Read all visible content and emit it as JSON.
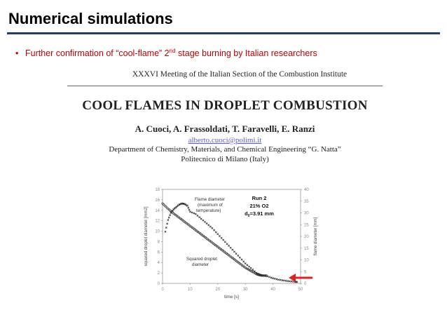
{
  "slide": {
    "title": "Numerical simulations",
    "bullet": "Further confirmation of “cool-flame” 2nd stage burning by Italian researchers",
    "bullet_prefix": "Further confirmation of “cool-flame” 2",
    "bullet_sup": "nd",
    "bullet_suffix": " stage burning by Italian researchers"
  },
  "paper": {
    "meeting": "XXXVI Meeting of the Italian Section of the Combustion Institute",
    "title": "COOL FLAMES IN DROPLET COMBUSTION",
    "authors": "A. Cuoci, A. Frassoldati, T. Faravelli, E. Ranzi",
    "email": "alberto.cuoci@polimi.it",
    "department": "Department of Chemistry, Materials, and Chemical Engineering “G. Natta”",
    "university": "Politecnico di Milano (Italy)"
  },
  "chart_data": {
    "type": "scatter",
    "xlabel": "time [s]",
    "ylabel_left": "squared droplet diameter [mm2]",
    "ylabel_right": "flame diameter [mm]",
    "xlim": [
      0,
      50
    ],
    "ylim_left": [
      0,
      18
    ],
    "ylim_right": [
      0,
      40
    ],
    "xticks": [
      "0",
      "10",
      "20",
      "30",
      "40",
      "50"
    ],
    "yticks_left": [
      "0",
      "2",
      "4",
      "6",
      "8",
      "10",
      "12",
      "14",
      "16",
      "18"
    ],
    "yticks_right": [
      "0",
      "5",
      "10",
      "15",
      "20",
      "25",
      "30",
      "35",
      "40"
    ],
    "run_label": "Run 2",
    "o2_label": "21% O2",
    "d0_label": "d",
    "d0_sub": "0",
    "d0_value": "=3.91 mm",
    "annotation_flame": [
      "Flame diameter",
      "(maximum of",
      "temperature)"
    ],
    "annotation_droplet": [
      "Squared droplet",
      "diameter"
    ],
    "series": [
      {
        "name": "Squared droplet diameter",
        "x": [
          0,
          2,
          4,
          6,
          8,
          10,
          12,
          14,
          16,
          18,
          20,
          22,
          24,
          26,
          28,
          30,
          32,
          34,
          35,
          36,
          38
        ],
        "y": [
          15.3,
          14.3,
          13.4,
          12.6,
          11.8,
          11.0,
          10.2,
          9.4,
          8.6,
          7.8,
          7.0,
          6.2,
          5.4,
          4.6,
          3.8,
          3.0,
          2.4,
          1.8,
          1.6,
          1.5,
          1.5
        ]
      },
      {
        "name": "Flame diameter",
        "x": [
          1,
          2,
          3,
          4,
          5,
          6,
          7,
          8,
          9,
          10,
          12,
          14,
          16,
          18,
          20,
          22,
          24,
          26,
          28,
          30,
          32,
          34,
          36,
          38,
          40,
          42,
          44,
          46,
          48,
          49
        ],
        "y": [
          22,
          27,
          30,
          31.5,
          32.5,
          33.5,
          34,
          33.8,
          33,
          30.5,
          29.5,
          27.5,
          25.5,
          23.5,
          21,
          18.5,
          16,
          13.5,
          11,
          8.5,
          6.5,
          4.5,
          3.5,
          3,
          2.2,
          1.6,
          1.2,
          0.9,
          0.7,
          0.6
        ]
      }
    ],
    "marker_color": "#333333",
    "arrow_color": "#e02020"
  }
}
